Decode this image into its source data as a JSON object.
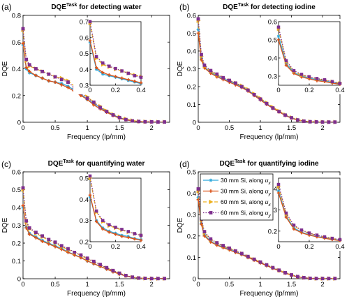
{
  "figure": {
    "background": "#ffffff",
    "series_styles": [
      {
        "color": "#2fa9dc",
        "marker": "star",
        "dash": "solid"
      },
      {
        "color": "#d95319",
        "marker": "plus",
        "dash": "solid"
      },
      {
        "color": "#edb120",
        "marker": "triangle-right",
        "dash": "dashed"
      },
      {
        "color": "#7e2f8e",
        "marker": "square",
        "dash": "dotted"
      }
    ]
  },
  "legend": {
    "entries": [
      {
        "prefix": "30 mm Si, along ",
        "var": "u",
        "sub": "x"
      },
      {
        "prefix": "30 mm Si, along ",
        "var": "u",
        "sub": "y"
      },
      {
        "prefix": "60 mm Si, along ",
        "var": "u",
        "sub": "x"
      },
      {
        "prefix": "60 mm Si, along ",
        "var": "u",
        "sub": "y"
      }
    ]
  },
  "chart_data": [
    {
      "type": "line",
      "panel_tag": "(a)",
      "title": {
        "base": "DQE",
        "sup": "Task",
        "rest": " for detecting water"
      },
      "xlabel": "Frequency (lp/mm)",
      "ylabel": "DQE",
      "xlim": [
        0,
        2.28
      ],
      "ylim": [
        0,
        0.8
      ],
      "xticks": [
        0,
        0.5,
        1,
        1.5,
        2
      ],
      "xtick_labels": [
        "0",
        "0.5",
        "1",
        "1.5",
        "2"
      ],
      "yticks": [
        0,
        0.2,
        0.4,
        0.6,
        0.8
      ],
      "ytick_labels": [
        "0",
        "0.2",
        "0.4",
        "0.6",
        "0.8"
      ],
      "x": [
        0,
        0.05,
        0.1,
        0.2,
        0.3,
        0.4,
        0.5,
        0.6,
        0.7,
        0.8,
        0.9,
        1.0,
        1.1,
        1.2,
        1.3,
        1.4,
        1.5,
        1.6,
        1.7,
        1.8,
        1.9,
        2.0,
        2.1,
        2.2
      ],
      "series": [
        {
          "values": [
            0.58,
            0.4,
            0.37,
            0.35,
            0.33,
            0.31,
            0.3,
            0.29,
            0.27,
            0.24,
            0.21,
            0.17,
            0.14,
            0.11,
            0.08,
            0.055,
            0.035,
            0.02,
            0.01,
            0.005,
            0.003,
            0.002,
            0.002,
            0.002
          ]
        },
        {
          "values": [
            0.59,
            0.41,
            0.38,
            0.35,
            0.33,
            0.31,
            0.3,
            0.28,
            0.26,
            0.23,
            0.2,
            0.17,
            0.13,
            0.1,
            0.075,
            0.05,
            0.03,
            0.018,
            0.01,
            0.005,
            0.003,
            0.002,
            0.002,
            0.002
          ]
        },
        {
          "values": [
            0.69,
            0.46,
            0.42,
            0.4,
            0.38,
            0.36,
            0.34,
            0.33,
            0.31,
            0.27,
            0.23,
            0.19,
            0.15,
            0.12,
            0.085,
            0.06,
            0.04,
            0.025,
            0.013,
            0.007,
            0.004,
            0.003,
            0.002,
            0.002
          ]
        },
        {
          "values": [
            0.7,
            0.47,
            0.43,
            0.4,
            0.38,
            0.36,
            0.34,
            0.32,
            0.3,
            0.26,
            0.22,
            0.18,
            0.15,
            0.11,
            0.08,
            0.055,
            0.035,
            0.02,
            0.01,
            0.006,
            0.004,
            0.003,
            0.002,
            0.002
          ]
        }
      ],
      "inset": {
        "xlim": [
          0,
          0.4
        ],
        "ylim": [
          0.3,
          0.7
        ],
        "xticks": [
          0,
          0.2,
          0.4
        ],
        "xtick_labels": [
          "0",
          "0.2",
          "0.4"
        ],
        "yticks": [
          0.3,
          0.4,
          0.5,
          0.6,
          0.7
        ],
        "ytick_labels": [
          "0.3",
          "0.4",
          "0.5",
          "0.6",
          "0.7"
        ],
        "x": [
          0,
          0.05,
          0.1,
          0.15,
          0.2,
          0.25,
          0.3,
          0.35,
          0.4
        ],
        "series": [
          {
            "values": [
              0.57,
              0.4,
              0.37,
              0.36,
              0.35,
              0.34,
              0.33,
              0.32,
              0.31
            ]
          },
          {
            "values": [
              0.58,
              0.41,
              0.38,
              0.365,
              0.355,
              0.345,
              0.335,
              0.325,
              0.315
            ]
          },
          {
            "values": [
              0.69,
              0.47,
              0.43,
              0.415,
              0.4,
              0.39,
              0.375,
              0.365,
              0.355
            ]
          },
          {
            "values": [
              0.7,
              0.48,
              0.44,
              0.42,
              0.405,
              0.39,
              0.375,
              0.36,
              0.35
            ]
          }
        ]
      }
    },
    {
      "type": "line",
      "panel_tag": "(b)",
      "title": {
        "base": "DQE",
        "sup": "Task",
        "rest": " for detecting iodine"
      },
      "xlabel": "Frequency (lp/mm)",
      "ylabel": "DQE",
      "xlim": [
        0,
        2.28
      ],
      "ylim": [
        0,
        0.6
      ],
      "xticks": [
        0,
        0.5,
        1,
        1.5,
        2
      ],
      "xtick_labels": [
        "0",
        "0.5",
        "1",
        "1.5",
        "2"
      ],
      "yticks": [
        0,
        0.1,
        0.2,
        0.3,
        0.4,
        0.5,
        0.6
      ],
      "ytick_labels": [
        "0",
        "0.1",
        "0.2",
        "0.3",
        "0.4",
        "0.5",
        "0.6"
      ],
      "x": [
        0,
        0.05,
        0.1,
        0.2,
        0.3,
        0.4,
        0.5,
        0.6,
        0.7,
        0.8,
        0.9,
        1.0,
        1.1,
        1.2,
        1.3,
        1.4,
        1.5,
        1.6,
        1.7,
        1.8,
        1.9,
        2.0,
        2.1,
        2.2
      ],
      "series": [
        {
          "values": [
            0.52,
            0.36,
            0.31,
            0.28,
            0.26,
            0.245,
            0.23,
            0.215,
            0.2,
            0.18,
            0.155,
            0.13,
            0.105,
            0.08,
            0.06,
            0.04,
            0.025,
            0.013,
            0.006,
            0.003,
            0.002,
            0.001,
            0.001,
            0.001
          ]
        },
        {
          "values": [
            0.5,
            0.35,
            0.305,
            0.275,
            0.255,
            0.24,
            0.225,
            0.21,
            0.195,
            0.175,
            0.15,
            0.125,
            0.1,
            0.078,
            0.058,
            0.038,
            0.023,
            0.012,
            0.006,
            0.003,
            0.002,
            0.001,
            0.001,
            0.001
          ]
        },
        {
          "values": [
            0.57,
            0.37,
            0.315,
            0.285,
            0.265,
            0.25,
            0.235,
            0.22,
            0.205,
            0.185,
            0.16,
            0.135,
            0.11,
            0.085,
            0.063,
            0.043,
            0.027,
            0.014,
            0.007,
            0.003,
            0.002,
            0.001,
            0.001,
            0.001
          ]
        },
        {
          "values": [
            0.58,
            0.38,
            0.32,
            0.29,
            0.27,
            0.25,
            0.235,
            0.22,
            0.2,
            0.18,
            0.155,
            0.13,
            0.105,
            0.08,
            0.06,
            0.04,
            0.025,
            0.013,
            0.006,
            0.003,
            0.002,
            0.001,
            0.001,
            0.001
          ]
        }
      ],
      "inset": {
        "xlim": [
          0,
          0.4
        ],
        "ylim": [
          0.25,
          0.6
        ],
        "xticks": [
          0,
          0.2,
          0.4
        ],
        "xtick_labels": [
          "0",
          "0.2",
          "0.4"
        ],
        "yticks": [
          0.3,
          0.4,
          0.5,
          0.6
        ],
        "ytick_labels": [
          "0.3",
          "0.4",
          "0.5",
          "0.6"
        ],
        "x": [
          0,
          0.05,
          0.1,
          0.15,
          0.2,
          0.25,
          0.3,
          0.35,
          0.4
        ],
        "series": [
          {
            "values": [
              0.52,
              0.37,
              0.32,
              0.3,
              0.29,
              0.28,
              0.275,
              0.265,
              0.26
            ]
          },
          {
            "values": [
              0.5,
              0.36,
              0.315,
              0.295,
              0.285,
              0.275,
              0.27,
              0.262,
              0.255
            ]
          },
          {
            "values": [
              0.56,
              0.38,
              0.325,
              0.305,
              0.295,
              0.285,
              0.278,
              0.27,
              0.262
            ]
          },
          {
            "values": [
              0.57,
              0.385,
              0.33,
              0.31,
              0.297,
              0.287,
              0.28,
              0.27,
              0.26
            ]
          }
        ]
      }
    },
    {
      "type": "line",
      "panel_tag": "(c)",
      "title": {
        "base": "DQE",
        "sup": "Task",
        "rest": " for quantifying water"
      },
      "xlabel": "Frequency (lp/mm)",
      "ylabel": "DQE",
      "xlim": [
        0,
        2.28
      ],
      "ylim": [
        0,
        0.6
      ],
      "xticks": [
        0,
        0.5,
        1,
        1.5,
        2
      ],
      "xtick_labels": [
        "0",
        "0.5",
        "1",
        "1.5",
        "2"
      ],
      "yticks": [
        0,
        0.1,
        0.2,
        0.3,
        0.4,
        0.5,
        0.6
      ],
      "ytick_labels": [
        "0",
        "0.1",
        "0.2",
        "0.3",
        "0.4",
        "0.5",
        "0.6"
      ],
      "x": [
        0,
        0.05,
        0.1,
        0.2,
        0.3,
        0.4,
        0.5,
        0.6,
        0.7,
        0.8,
        0.9,
        1.0,
        1.1,
        1.2,
        1.3,
        1.4,
        1.5,
        1.6,
        1.7,
        1.8,
        1.9,
        2.0,
        2.1,
        2.2
      ],
      "series": [
        {
          "values": [
            0.4,
            0.29,
            0.255,
            0.235,
            0.215,
            0.2,
            0.185,
            0.17,
            0.15,
            0.135,
            0.12,
            0.1,
            0.085,
            0.07,
            0.055,
            0.04,
            0.027,
            0.016,
            0.008,
            0.004,
            0.002,
            0.001,
            0.001,
            0.001
          ]
        },
        {
          "values": [
            0.41,
            0.285,
            0.25,
            0.23,
            0.21,
            0.195,
            0.18,
            0.165,
            0.148,
            0.133,
            0.118,
            0.1,
            0.084,
            0.069,
            0.054,
            0.039,
            0.026,
            0.015,
            0.008,
            0.004,
            0.002,
            0.001,
            0.001,
            0.001
          ]
        },
        {
          "values": [
            0.5,
            0.32,
            0.28,
            0.255,
            0.235,
            0.215,
            0.2,
            0.18,
            0.163,
            0.146,
            0.13,
            0.112,
            0.095,
            0.078,
            0.061,
            0.045,
            0.03,
            0.018,
            0.009,
            0.004,
            0.002,
            0.001,
            0.001,
            0.001
          ]
        },
        {
          "values": [
            0.51,
            0.325,
            0.285,
            0.26,
            0.24,
            0.22,
            0.205,
            0.185,
            0.168,
            0.15,
            0.133,
            0.115,
            0.097,
            0.08,
            0.062,
            0.046,
            0.031,
            0.018,
            0.009,
            0.004,
            0.002,
            0.001,
            0.001,
            0.001
          ]
        }
      ],
      "inset": {
        "xlim": [
          0,
          0.4
        ],
        "ylim": [
          0.2,
          0.5
        ],
        "xticks": [
          0,
          0.2,
          0.4
        ],
        "xtick_labels": [
          "0",
          "0.2",
          "0.4"
        ],
        "yticks": [
          0.2,
          0.3,
          0.4,
          0.5
        ],
        "ytick_labels": [
          "0.2",
          "0.3",
          "0.4",
          "0.5"
        ],
        "x": [
          0,
          0.05,
          0.1,
          0.15,
          0.2,
          0.25,
          0.3,
          0.35,
          0.4
        ],
        "series": [
          {
            "values": [
              0.41,
              0.3,
              0.265,
              0.25,
              0.24,
              0.23,
              0.225,
              0.215,
              0.21
            ]
          },
          {
            "values": [
              0.42,
              0.295,
              0.26,
              0.245,
              0.235,
              0.225,
              0.22,
              0.213,
              0.207
            ]
          },
          {
            "values": [
              0.5,
              0.34,
              0.295,
              0.275,
              0.265,
              0.255,
              0.245,
              0.237,
              0.23
            ]
          },
          {
            "values": [
              0.51,
              0.345,
              0.3,
              0.28,
              0.268,
              0.258,
              0.248,
              0.238,
              0.23
            ]
          }
        ]
      }
    },
    {
      "type": "line",
      "panel_tag": "(d)",
      "title": {
        "base": "DQE",
        "sup": "Task",
        "rest": " for quantifying iodine"
      },
      "xlabel": "Frequency (lp/mm)",
      "ylabel": "DQE",
      "xlim": [
        0,
        2.28
      ],
      "ylim": [
        0,
        0.5
      ],
      "xticks": [
        0,
        0.5,
        1,
        1.5,
        2
      ],
      "xtick_labels": [
        "0",
        "0.5",
        "1",
        "1.5",
        "2"
      ],
      "yticks": [
        0,
        0.1,
        0.2,
        0.3,
        0.4,
        0.5
      ],
      "ytick_labels": [
        "0",
        "0.1",
        "0.2",
        "0.3",
        "0.4",
        "0.5"
      ],
      "x": [
        0,
        0.05,
        0.1,
        0.2,
        0.3,
        0.4,
        0.5,
        0.6,
        0.7,
        0.8,
        0.9,
        1.0,
        1.1,
        1.2,
        1.3,
        1.4,
        1.5,
        1.6,
        1.7,
        1.8,
        1.9,
        2.0,
        2.1,
        2.2
      ],
      "series": [
        {
          "values": [
            0.38,
            0.26,
            0.205,
            0.175,
            0.16,
            0.148,
            0.138,
            0.125,
            0.115,
            0.1,
            0.088,
            0.075,
            0.062,
            0.05,
            0.038,
            0.027,
            0.017,
            0.009,
            0.004,
            0.002,
            0.001,
            0.001,
            0.001,
            0.001
          ]
        },
        {
          "values": [
            0.37,
            0.255,
            0.2,
            0.172,
            0.157,
            0.145,
            0.135,
            0.123,
            0.113,
            0.099,
            0.087,
            0.074,
            0.061,
            0.049,
            0.037,
            0.026,
            0.016,
            0.009,
            0.004,
            0.002,
            0.001,
            0.001,
            0.001,
            0.001
          ]
        },
        {
          "values": [
            0.41,
            0.275,
            0.215,
            0.183,
            0.166,
            0.153,
            0.142,
            0.13,
            0.118,
            0.104,
            0.091,
            0.078,
            0.065,
            0.052,
            0.04,
            0.028,
            0.018,
            0.01,
            0.005,
            0.002,
            0.001,
            0.001,
            0.001,
            0.001
          ]
        },
        {
          "values": [
            0.42,
            0.28,
            0.22,
            0.186,
            0.168,
            0.155,
            0.143,
            0.13,
            0.118,
            0.104,
            0.091,
            0.078,
            0.065,
            0.052,
            0.04,
            0.028,
            0.018,
            0.01,
            0.005,
            0.002,
            0.001,
            0.001,
            0.001,
            0.001
          ]
        }
      ],
      "inset": {
        "xlim": [
          0,
          0.4
        ],
        "ylim": [
          0.15,
          0.45
        ],
        "xticks": [
          0,
          0.2,
          0.4
        ],
        "xtick_labels": [
          "0",
          "0.2",
          "0.4"
        ],
        "yticks": [
          0.2,
          0.3,
          0.4
        ],
        "ytick_labels": [
          "0.2",
          "0.3",
          "0.4"
        ],
        "x": [
          0,
          0.05,
          0.1,
          0.15,
          0.2,
          0.25,
          0.3,
          0.35,
          0.4
        ],
        "series": [
          {
            "values": [
              0.39,
              0.27,
              0.215,
              0.195,
              0.183,
              0.175,
              0.168,
              0.162,
              0.157
            ]
          },
          {
            "values": [
              0.38,
              0.265,
              0.21,
              0.192,
              0.181,
              0.173,
              0.166,
              0.16,
              0.155
            ]
          },
          {
            "values": [
              0.41,
              0.28,
              0.225,
              0.203,
              0.19,
              0.18,
              0.172,
              0.165,
              0.159
            ]
          },
          {
            "values": [
              0.42,
              0.285,
              0.228,
              0.205,
              0.191,
              0.181,
              0.173,
              0.166,
              0.16
            ]
          }
        ]
      }
    }
  ]
}
